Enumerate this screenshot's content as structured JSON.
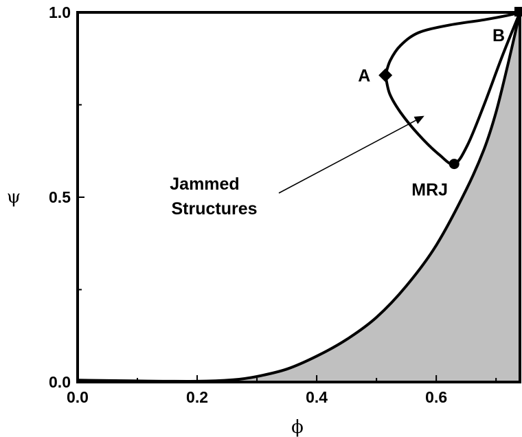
{
  "chart_data": {
    "type": "line",
    "xlabel": "ϕ",
    "ylabel": "ψ",
    "xlim": [
      0.0,
      0.74
    ],
    "ylim": [
      0.0,
      1.0
    ],
    "x_ticks": [
      "0.0",
      "0.2",
      "0.4",
      "0.6"
    ],
    "y_ticks": [
      "0.0",
      "0.5",
      "1.0"
    ],
    "grid": false,
    "colors": {
      "line": "#000000",
      "shaded": "#c0c0c0",
      "background": "#ffffff"
    },
    "shaded_region": {
      "boundary": [
        [
          0.0,
          0.005
        ],
        [
          0.1,
          0.003
        ],
        [
          0.2,
          0.002
        ],
        [
          0.26,
          0.006
        ],
        [
          0.3,
          0.015
        ],
        [
          0.35,
          0.035
        ],
        [
          0.4,
          0.07
        ],
        [
          0.45,
          0.115
        ],
        [
          0.5,
          0.175
        ],
        [
          0.55,
          0.26
        ],
        [
          0.6,
          0.37
        ],
        [
          0.65,
          0.52
        ],
        [
          0.68,
          0.63
        ],
        [
          0.7,
          0.73
        ],
        [
          0.72,
          0.86
        ],
        [
          0.74,
          1.0
        ]
      ]
    },
    "series": [
      {
        "values": [
          [
            0.515,
            0.83
          ],
          [
            0.523,
            0.87
          ],
          [
            0.54,
            0.91
          ],
          [
            0.57,
            0.945
          ],
          [
            0.62,
            0.965
          ],
          [
            0.68,
            0.98
          ],
          [
            0.72,
            0.992
          ],
          [
            0.74,
            1.0
          ]
        ]
      },
      {
        "values": [
          [
            0.515,
            0.83
          ],
          [
            0.522,
            0.78
          ],
          [
            0.54,
            0.73
          ],
          [
            0.57,
            0.67
          ],
          [
            0.605,
            0.615
          ],
          [
            0.63,
            0.59
          ],
          [
            0.652,
            0.64
          ],
          [
            0.68,
            0.75
          ],
          [
            0.71,
            0.88
          ],
          [
            0.74,
            1.0
          ]
        ]
      }
    ],
    "points": [
      {
        "label": "A",
        "x": 0.515,
        "y": 0.83,
        "marker": "diamond"
      },
      {
        "label": "MRJ",
        "x": 0.63,
        "y": 0.59,
        "marker": "circle"
      },
      {
        "label": "B",
        "x": 0.74,
        "y": 1.0,
        "marker": "square"
      }
    ],
    "annotations": [
      {
        "text_lines": [
          "Jammed",
          "Structures"
        ],
        "arrow_to": [
          0.58,
          0.72
        ]
      }
    ]
  }
}
